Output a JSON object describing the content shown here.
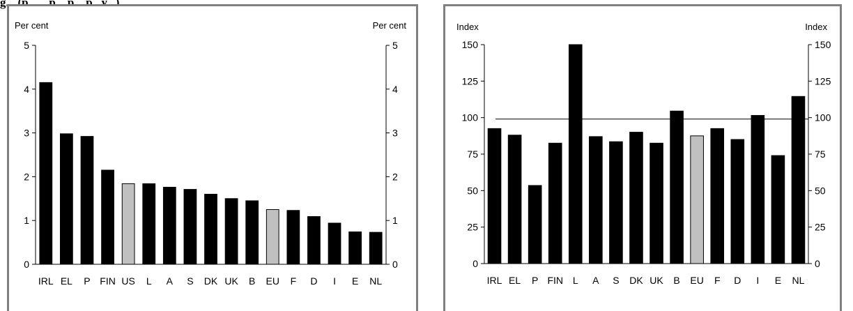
{
  "caption_fragment": "g...  (p... ...p ...p ...p...y...)",
  "chart_data": [
    {
      "type": "bar",
      "ylabel_left": "Per cent",
      "ylabel_right": "Per cent",
      "ylim": [
        0,
        5
      ],
      "yticks": [
        0,
        1,
        2,
        3,
        4,
        5
      ],
      "categories": [
        "IRL",
        "EL",
        "P",
        "FIN",
        "US",
        "L",
        "A",
        "S",
        "DK",
        "UK",
        "B",
        "EU",
        "F",
        "D",
        "I",
        "E",
        "NL"
      ],
      "values": [
        4.15,
        2.98,
        2.92,
        2.15,
        1.84,
        1.84,
        1.76,
        1.71,
        1.6,
        1.5,
        1.45,
        1.25,
        1.23,
        1.09,
        0.94,
        0.74,
        0.73
      ],
      "highlight": [
        "US",
        "EU"
      ],
      "bar_color": "#000000",
      "highlight_color": "#c0c0c0",
      "grid": false
    },
    {
      "type": "bar",
      "ylabel_left": "Index",
      "ylabel_right": "Index",
      "ylim": [
        0,
        150
      ],
      "yticks": [
        0,
        25,
        50,
        75,
        100,
        125,
        150
      ],
      "categories": [
        "IRL",
        "EL",
        "P",
        "FIN",
        "L",
        "A",
        "S",
        "DK",
        "UK",
        "B",
        "EU",
        "F",
        "D",
        "I",
        "E",
        "NL"
      ],
      "values": [
        92.5,
        88,
        53.5,
        82.5,
        150,
        87,
        83.5,
        90,
        82.5,
        104.5,
        87.5,
        92.5,
        85,
        101.5,
        74,
        114.5
      ],
      "highlight": [
        "EU"
      ],
      "reference_line": 99,
      "bar_color": "#000000",
      "highlight_color": "#c0c0c0",
      "grid": false
    }
  ]
}
